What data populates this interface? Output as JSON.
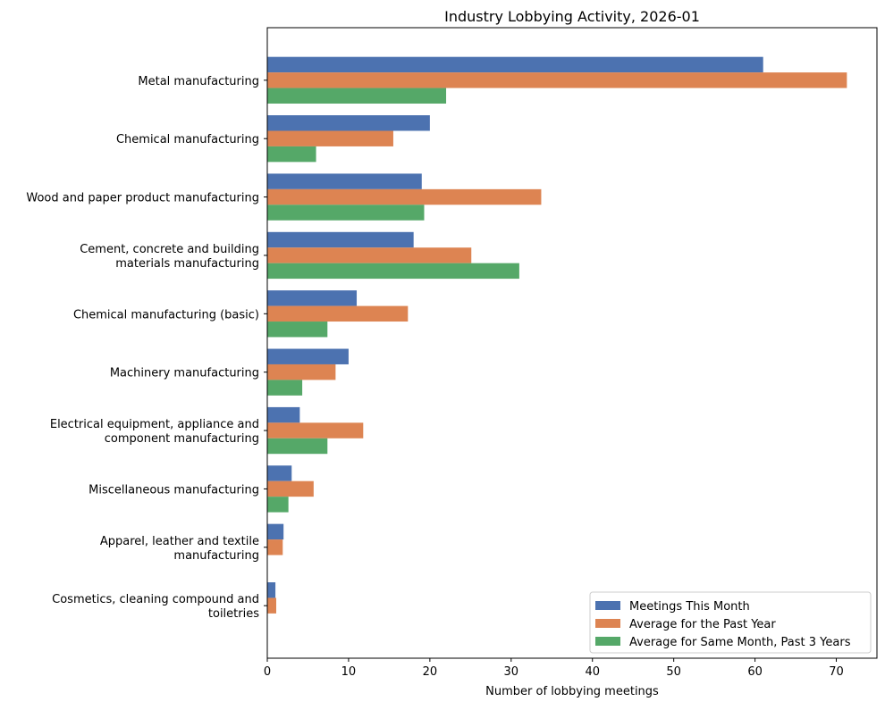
{
  "chart_data": {
    "type": "bar",
    "orientation": "horizontal",
    "title": "Industry Lobbying Activity, 2026-01",
    "xlabel": "Number of lobbying meetings",
    "ylabel": "",
    "xlim": [
      0,
      75
    ],
    "xticks": [
      0,
      10,
      20,
      30,
      40,
      50,
      60,
      70
    ],
    "grid": false,
    "legend_position": "bottom-right",
    "categories": [
      [
        "Metal manufacturing"
      ],
      [
        "Chemical manufacturing"
      ],
      [
        "Wood and paper product manufacturing"
      ],
      [
        "Cement, concrete and building",
        "materials manufacturing"
      ],
      [
        "Chemical manufacturing (basic)"
      ],
      [
        "Machinery manufacturing"
      ],
      [
        "Electrical equipment, appliance and",
        "component manufacturing"
      ],
      [
        "Miscellaneous manufacturing"
      ],
      [
        "Apparel, leather and textile",
        "manufacturing"
      ],
      [
        "Cosmetics, cleaning compound and",
        "toiletries"
      ]
    ],
    "series": [
      {
        "name": "Meetings This Month",
        "color": "#4c72b0",
        "values": [
          61,
          20,
          19,
          18,
          11,
          10,
          4,
          3,
          2,
          1
        ]
      },
      {
        "name": "Average for the Past Year",
        "color": "#dd8452",
        "values": [
          71.3,
          15.5,
          33.7,
          25.1,
          17.3,
          8.4,
          11.8,
          5.7,
          1.9,
          1.1
        ]
      },
      {
        "name": "Average for Same Month, Past 3 Years",
        "color": "#55a868",
        "values": [
          22.0,
          6.0,
          19.3,
          31.0,
          7.4,
          4.3,
          7.4,
          2.6,
          0,
          0
        ]
      }
    ]
  }
}
